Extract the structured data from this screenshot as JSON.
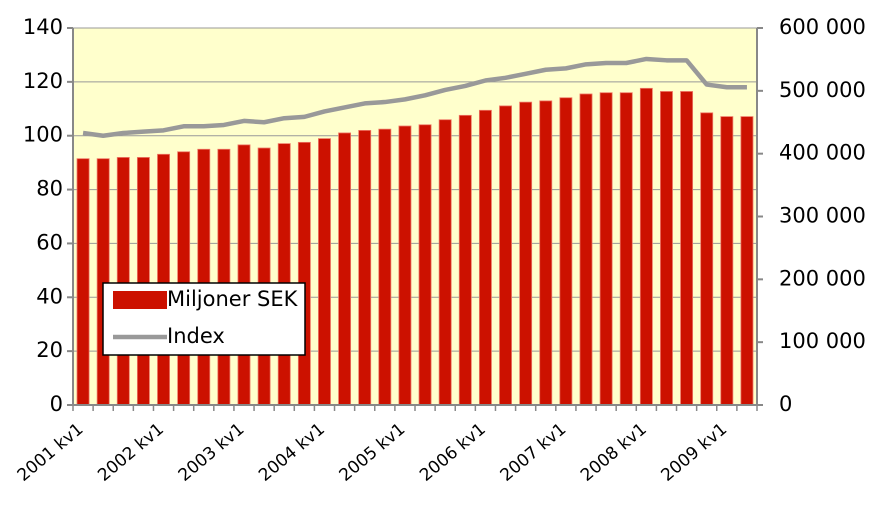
{
  "chart_data": {
    "type": "bar_line",
    "categories": [
      "2001 kv1",
      null,
      null,
      null,
      "2002 kv1",
      null,
      null,
      null,
      "2003 kv1",
      null,
      null,
      null,
      "2004 kv1",
      null,
      null,
      null,
      "2005 kv1",
      null,
      null,
      null,
      "2006 kv1",
      null,
      null,
      null,
      "2007 kv1",
      null,
      null,
      null,
      "2008 kv1",
      null,
      null,
      null,
      "2009 kv1",
      null
    ],
    "series": [
      {
        "name": "Miljoner SEK",
        "color": "#cc1100",
        "kind": "bar",
        "axis": "y2",
        "values": [
          392000,
          392000,
          394000,
          394000,
          399000,
          403000,
          407000,
          407000,
          414000,
          409000,
          416000,
          418000,
          424000,
          433000,
          437000,
          439000,
          444000,
          446000,
          454000,
          461000,
          469000,
          476000,
          482000,
          484000,
          489000,
          495000,
          497000,
          497000,
          504000,
          499000,
          499000,
          465000,
          459000,
          459000
        ]
      },
      {
        "name": "Index",
        "color": "#999999",
        "kind": "line",
        "axis": "y",
        "values": [
          101,
          100,
          101,
          101.5,
          102,
          103.5,
          103.5,
          104,
          105.5,
          105,
          106.5,
          107,
          109,
          110.5,
          112,
          112.5,
          113.5,
          115,
          117,
          118.5,
          120.5,
          121.5,
          123,
          124.5,
          125,
          126.5,
          127,
          127,
          128.5,
          128,
          128,
          119,
          118,
          118
        ]
      }
    ],
    "ylim": [
      0,
      140
    ],
    "yticks": [
      0,
      20,
      40,
      60,
      80,
      100,
      120,
      140
    ],
    "y2lim": [
      0,
      600000
    ],
    "y2ticks": [
      0,
      {
        "value": 100000,
        "label": "100 000"
      },
      {
        "value": 200000,
        "label": "200 000"
      },
      {
        "value": 300000,
        "label": "300 000"
      },
      {
        "value": 400000,
        "label": "400 000"
      },
      {
        "value": 500000,
        "label": "500 000"
      },
      {
        "value": 600000,
        "label": "600 000"
      }
    ],
    "grid": true,
    "legend": "lower left",
    "background": "#ffffcc"
  }
}
